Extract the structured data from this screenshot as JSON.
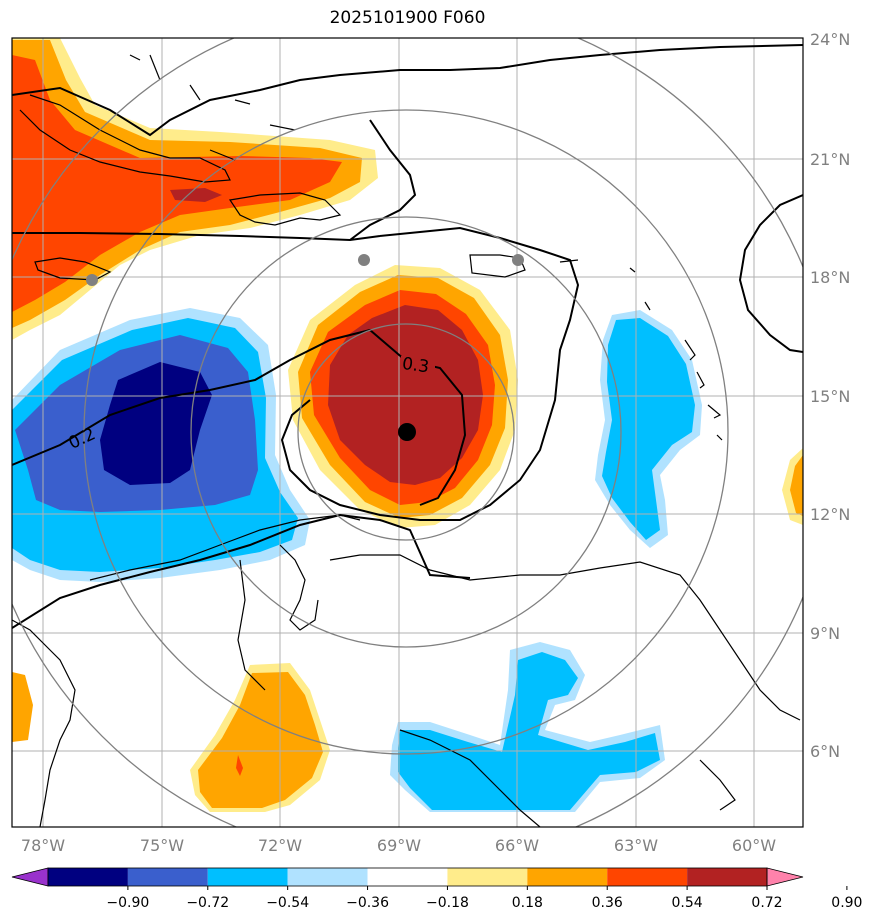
{
  "title": "2025101900 F060",
  "map": {
    "lat_labels": [
      "24°N",
      "21°N",
      "18°N",
      "15°N",
      "12°N",
      "9°N",
      "6°N"
    ],
    "lon_labels": [
      "78°W",
      "75°W",
      "72°W",
      "69°W",
      "66°W",
      "63°W",
      "60°W"
    ],
    "contour_labels": [
      "0.2",
      "0.3"
    ]
  },
  "colorbar": {
    "labels": [
      "−0.90",
      "−0.72",
      "−0.54",
      "−0.36",
      "−0.18",
      "0.18",
      "0.36",
      "0.54",
      "0.72",
      "0.90"
    ],
    "colors": [
      "#9932cc",
      "#000080",
      "#3a5fcd",
      "#00bfff",
      "#b0e2ff",
      "#ffffff",
      "#ffec8b",
      "#ffa500",
      "#ff4500",
      "#b22222",
      "#ff82ab"
    ]
  },
  "palette": {
    "land": "#000000",
    "grid": "#b0b0b0",
    "rings": "#808080",
    "axis_labels": "#808080"
  }
}
